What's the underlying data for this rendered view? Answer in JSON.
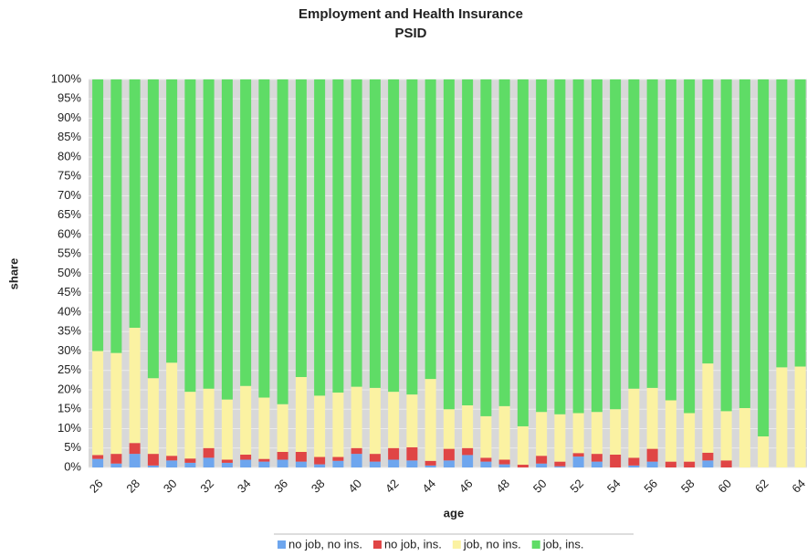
{
  "chart_data": {
    "type": "stacked-bar",
    "title": "Employment and Health Insurance",
    "subtitle": "PSID",
    "x_label": "age",
    "y_label": "share",
    "categories": [
      "26",
      null,
      "28",
      null,
      "30",
      null,
      "32",
      null,
      "34",
      null,
      "36",
      null,
      "38",
      null,
      "40",
      null,
      "42",
      null,
      "44",
      null,
      "46",
      null,
      "48",
      null,
      "50",
      null,
      "52",
      null,
      "54",
      null,
      "56",
      null,
      "58",
      null,
      "60",
      null,
      "62",
      null,
      "64"
    ],
    "series": [
      {
        "name": "no job, no ins.",
        "color": "#6ea6ee",
        "values": [
          2.2,
          1,
          3.5,
          0.5,
          1.8,
          1.2,
          2.5,
          1.2,
          2,
          1.5,
          2,
          1.5,
          0.8,
          1.7,
          3.5,
          1.5,
          2,
          1.8,
          0.5,
          1.8,
          3.2,
          1.5,
          0.8,
          0,
          1,
          0.3,
          2.8,
          1.5,
          0,
          0.5,
          1.5,
          0,
          0,
          1.8,
          0,
          0,
          0,
          0,
          0
        ]
      },
      {
        "name": "no job, ins.",
        "color": "#e04545",
        "values": [
          1,
          2.5,
          2.8,
          3,
          1.2,
          1.1,
          2.5,
          0.8,
          1.3,
          0.7,
          2,
          2.5,
          1.9,
          1,
          1.5,
          2,
          3,
          3.4,
          1.2,
          3,
          1.8,
          1,
          1.2,
          0.7,
          2,
          1.2,
          0.9,
          2,
          3.3,
          2,
          3.3,
          1.5,
          1.5,
          2,
          1.8,
          0,
          0,
          0,
          0
        ]
      },
      {
        "name": "job, no ins.",
        "color": "#fbf2a2",
        "values": [
          26.8,
          26,
          29.7,
          19.5,
          24,
          17.2,
          15.3,
          15.5,
          17.7,
          15.8,
          12.3,
          19.3,
          15.8,
          16.6,
          15.8,
          17,
          14.5,
          13.6,
          21.1,
          10.2,
          11,
          10.7,
          13.8,
          9.9,
          11.3,
          12.2,
          10.3,
          10.8,
          11.7,
          17.8,
          15.7,
          15.8,
          12.5,
          23,
          12.7,
          15.3,
          8,
          25.8,
          26
        ]
      },
      {
        "name": "job, ins.",
        "color": "#5fdc66",
        "values": [
          70,
          70.5,
          64,
          77,
          73,
          80.5,
          79.7,
          82.5,
          79,
          82,
          83.7,
          76.7,
          81.5,
          80.7,
          79.2,
          79.5,
          80.5,
          81.2,
          77.2,
          85,
          84,
          86.8,
          84.2,
          89.4,
          85.7,
          86.3,
          86,
          85.7,
          85,
          79.7,
          79.5,
          82.7,
          86,
          73.2,
          85.5,
          84.7,
          92,
          74.2,
          74
        ]
      }
    ],
    "ylim": [
      0,
      100
    ],
    "yticks": [
      {
        "value": 0,
        "label": "0%"
      },
      {
        "value": 5,
        "label": "5%"
      },
      {
        "value": 10,
        "label": "10%"
      },
      {
        "value": 15,
        "label": "15%"
      },
      {
        "value": 20,
        "label": "20%"
      },
      {
        "value": 25,
        "label": "25%"
      },
      {
        "value": 30,
        "label": "30%"
      },
      {
        "value": 35,
        "label": "35%"
      },
      {
        "value": 40,
        "label": "40%"
      },
      {
        "value": 45,
        "label": "45%"
      },
      {
        "value": 50,
        "label": "50%"
      },
      {
        "value": 55,
        "label": "55%"
      },
      {
        "value": 60,
        "label": "60%"
      },
      {
        "value": 65,
        "label": "65%"
      },
      {
        "value": 70,
        "label": "70%"
      },
      {
        "value": 75,
        "label": "75%"
      },
      {
        "value": 80,
        "label": "80%"
      },
      {
        "value": 85,
        "label": "85%"
      },
      {
        "value": 90,
        "label": "90%"
      },
      {
        "value": 95,
        "label": "95%"
      },
      {
        "value": 100,
        "label": "100%"
      }
    ],
    "grid": true,
    "legend": "bottom"
  }
}
